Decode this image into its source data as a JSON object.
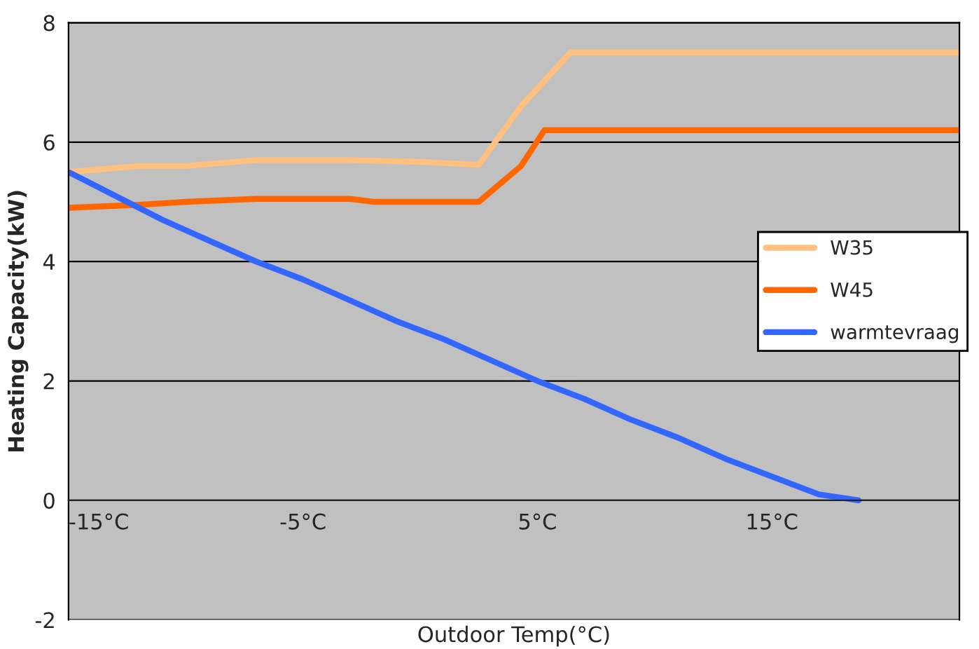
{
  "chart_data": {
    "type": "line",
    "xlabel": "Outdoor Temp(°C)",
    "ylabel": "Heating Capacity(kW)",
    "xlim": [
      -15,
      23
    ],
    "ylim": [
      -2,
      8
    ],
    "xticks": [
      {
        "value": -15,
        "label": "-15°C"
      },
      {
        "value": -5,
        "label": "-5°C"
      },
      {
        "value": 5,
        "label": "5°C"
      },
      {
        "value": 15,
        "label": "15°C"
      }
    ],
    "yticks": [
      -2,
      0,
      2,
      4,
      6,
      8
    ],
    "grid": "y",
    "legend": "right",
    "marker": "none",
    "line_style": "solid",
    "series": [
      {
        "name": "W35",
        "color": "#ffc080",
        "x": [
          -15,
          -12,
          -10,
          -7,
          -3,
          0,
          2.5,
          4.3,
          6.4,
          23
        ],
        "values": [
          5.5,
          5.6,
          5.6,
          5.7,
          5.7,
          5.67,
          5.62,
          6.6,
          7.5,
          7.5
        ]
      },
      {
        "name": "W45",
        "color": "#ff6600",
        "x": [
          -15,
          -12,
          -10,
          -7,
          -3,
          -2,
          2.5,
          4.3,
          5.3,
          23
        ],
        "values": [
          4.9,
          4.95,
          5.0,
          5.05,
          5.05,
          5.0,
          5.0,
          5.6,
          6.2,
          6.2
        ]
      },
      {
        "name": "warmtevraag",
        "color": "#3366ff",
        "x": [
          -15,
          -13,
          -11,
          -9,
          -7,
          -5,
          -3,
          -1,
          1,
          3,
          5,
          7,
          9,
          11,
          13,
          15,
          17,
          18.7
        ],
        "values": [
          5.5,
          5.1,
          4.7,
          4.35,
          4.0,
          3.7,
          3.35,
          3.0,
          2.7,
          2.35,
          2.0,
          1.7,
          1.35,
          1.05,
          0.7,
          0.4,
          0.1,
          0.0
        ]
      }
    ]
  }
}
